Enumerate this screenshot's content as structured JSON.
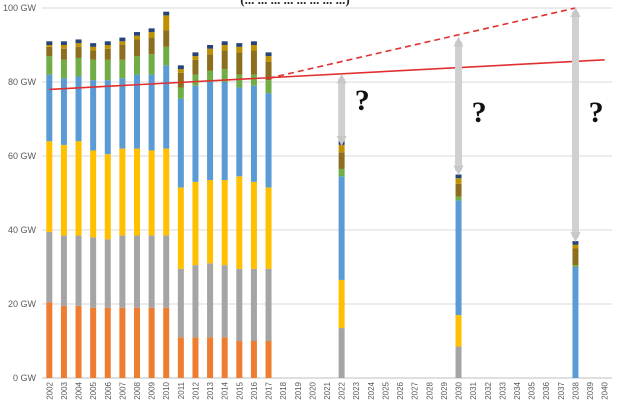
{
  "chart_data": {
    "type": "bar",
    "stacked": true,
    "title_fragment": "(... ... ... ... ... ... ... ...)",
    "y_unit": "GW",
    "ylim": [
      0,
      100
    ],
    "y_ticks": [
      "0 GW",
      "20 GW",
      "40 GW",
      "60 GW",
      "80 GW",
      "100 GW"
    ],
    "y_tick_values": [
      0,
      20,
      40,
      60,
      80,
      100
    ],
    "grid": true,
    "legend": "none",
    "categories": [
      "2002",
      "2003",
      "2004",
      "2005",
      "2006",
      "2007",
      "2008",
      "2009",
      "2010",
      "2011",
      "2012",
      "2013",
      "2014",
      "2015",
      "2016",
      "2017",
      "2018",
      "2019",
      "2020",
      "2021",
      "2022",
      "2023",
      "2024",
      "2025",
      "2026",
      "2027",
      "2028",
      "2029",
      "2030",
      "2031",
      "2032",
      "2033",
      "2034",
      "2035",
      "2036",
      "2037",
      "2038",
      "2039",
      "2040"
    ],
    "series": [
      {
        "color": "#ED7D31",
        "values": {
          "2002": 20.5,
          "2003": 19.5,
          "2004": 19.5,
          "2005": 19.0,
          "2006": 19.0,
          "2007": 19.0,
          "2008": 19.0,
          "2009": 19.0,
          "2010": 19.0,
          "2011": 11.0,
          "2012": 11.0,
          "2013": 11.0,
          "2014": 11.0,
          "2015": 10.0,
          "2016": 10.0,
          "2017": 10.0
        }
      },
      {
        "color": "#A5A5A5",
        "values": {
          "2002": 19.0,
          "2003": 19.0,
          "2004": 19.0,
          "2005": 19.0,
          "2006": 18.5,
          "2007": 19.5,
          "2008": 19.5,
          "2009": 19.5,
          "2010": 19.5,
          "2011": 18.5,
          "2012": 19.5,
          "2013": 20.0,
          "2014": 19.5,
          "2015": 19.5,
          "2016": 19.5,
          "2017": 19.5,
          "2022": 13.5,
          "2030": 8.5
        }
      },
      {
        "color": "#FFC000",
        "values": {
          "2002": 24.5,
          "2003": 24.5,
          "2004": 25.5,
          "2005": 23.5,
          "2006": 23.0,
          "2007": 23.5,
          "2008": 23.5,
          "2009": 23.0,
          "2010": 23.5,
          "2011": 22.0,
          "2012": 22.5,
          "2013": 22.5,
          "2014": 23.0,
          "2015": 25.0,
          "2016": 23.5,
          "2017": 22.0,
          "2022": 13.0,
          "2030": 8.5
        }
      },
      {
        "color": "#5B9BD5",
        "values": {
          "2002": 18.0,
          "2003": 18.0,
          "2004": 17.5,
          "2005": 19.0,
          "2006": 20.0,
          "2007": 19.0,
          "2008": 20.0,
          "2009": 20.5,
          "2010": 22.5,
          "2011": 24.0,
          "2012": 26.0,
          "2013": 26.5,
          "2014": 26.5,
          "2015": 24.0,
          "2016": 26.0,
          "2017": 25.5,
          "2022": 28.0,
          "2030": 31.0,
          "2038": 30.0
        }
      },
      {
        "color": "#70AD47",
        "values": {
          "2002": 5.0,
          "2003": 5.0,
          "2004": 5.0,
          "2005": 5.5,
          "2006": 5.5,
          "2007": 5.0,
          "2008": 5.0,
          "2009": 5.5,
          "2010": 5.0,
          "2011": 3.0,
          "2012": 3.0,
          "2013": 3.0,
          "2014": 3.5,
          "2015": 3.5,
          "2016": 3.0,
          "2017": 3.5,
          "2022": 2.0,
          "2030": 1.0,
          "2038": 0.5
        }
      },
      {
        "color": "#8B6F1E",
        "values": {
          "2002": 2.5,
          "2003": 3.0,
          "2004": 3.0,
          "2005": 2.5,
          "2006": 3.0,
          "2007": 4.0,
          "2008": 4.5,
          "2009": 4.5,
          "2010": 4.5,
          "2011": 4.0,
          "2012": 4.0,
          "2013": 4.5,
          "2014": 5.0,
          "2015": 6.0,
          "2016": 6.5,
          "2017": 5.0,
          "2022": 4.5,
          "2030": 3.5,
          "2038": 4.5
        }
      },
      {
        "color": "#BF9000",
        "values": {
          "2002": 0.5,
          "2003": 1.0,
          "2004": 1.0,
          "2005": 1.0,
          "2006": 1.0,
          "2007": 1.0,
          "2008": 1.0,
          "2009": 1.5,
          "2010": 4.0,
          "2011": 1.0,
          "2012": 1.0,
          "2013": 1.5,
          "2014": 1.5,
          "2015": 1.5,
          "2016": 1.5,
          "2017": 1.5,
          "2022": 2.0,
          "2030": 1.5,
          "2038": 1.0
        }
      },
      {
        "color": "#264478",
        "values": {
          "2002": 1.0,
          "2003": 1.0,
          "2004": 1.0,
          "2005": 1.0,
          "2006": 1.0,
          "2007": 1.0,
          "2008": 1.0,
          "2009": 1.0,
          "2010": 1.0,
          "2011": 1.0,
          "2012": 1.0,
          "2013": 1.0,
          "2014": 1.0,
          "2015": 1.0,
          "2016": 1.0,
          "2017": 1.0,
          "2022": 1.0,
          "2030": 1.0,
          "2038": 1.0
        }
      }
    ],
    "trend_lines": [
      {
        "style": "solid",
        "color": "#E03030",
        "points": [
          [
            "2002",
            78
          ],
          [
            "2040",
            86
          ]
        ]
      },
      {
        "style": "dashed",
        "color": "#E03030",
        "points": [
          [
            "2017",
            81
          ],
          [
            "2038",
            100
          ]
        ]
      }
    ],
    "gap_arrows": [
      {
        "x": "2022",
        "from": 63,
        "to": 82
      },
      {
        "x": "2030",
        "from": 55,
        "to": 92
      },
      {
        "x": "2038",
        "from": 37,
        "to": 100
      }
    ],
    "annotations": [
      {
        "text": "?",
        "x": "2023"
      },
      {
        "text": "?",
        "x": "2031"
      },
      {
        "text": "?",
        "x": "2039"
      }
    ]
  }
}
